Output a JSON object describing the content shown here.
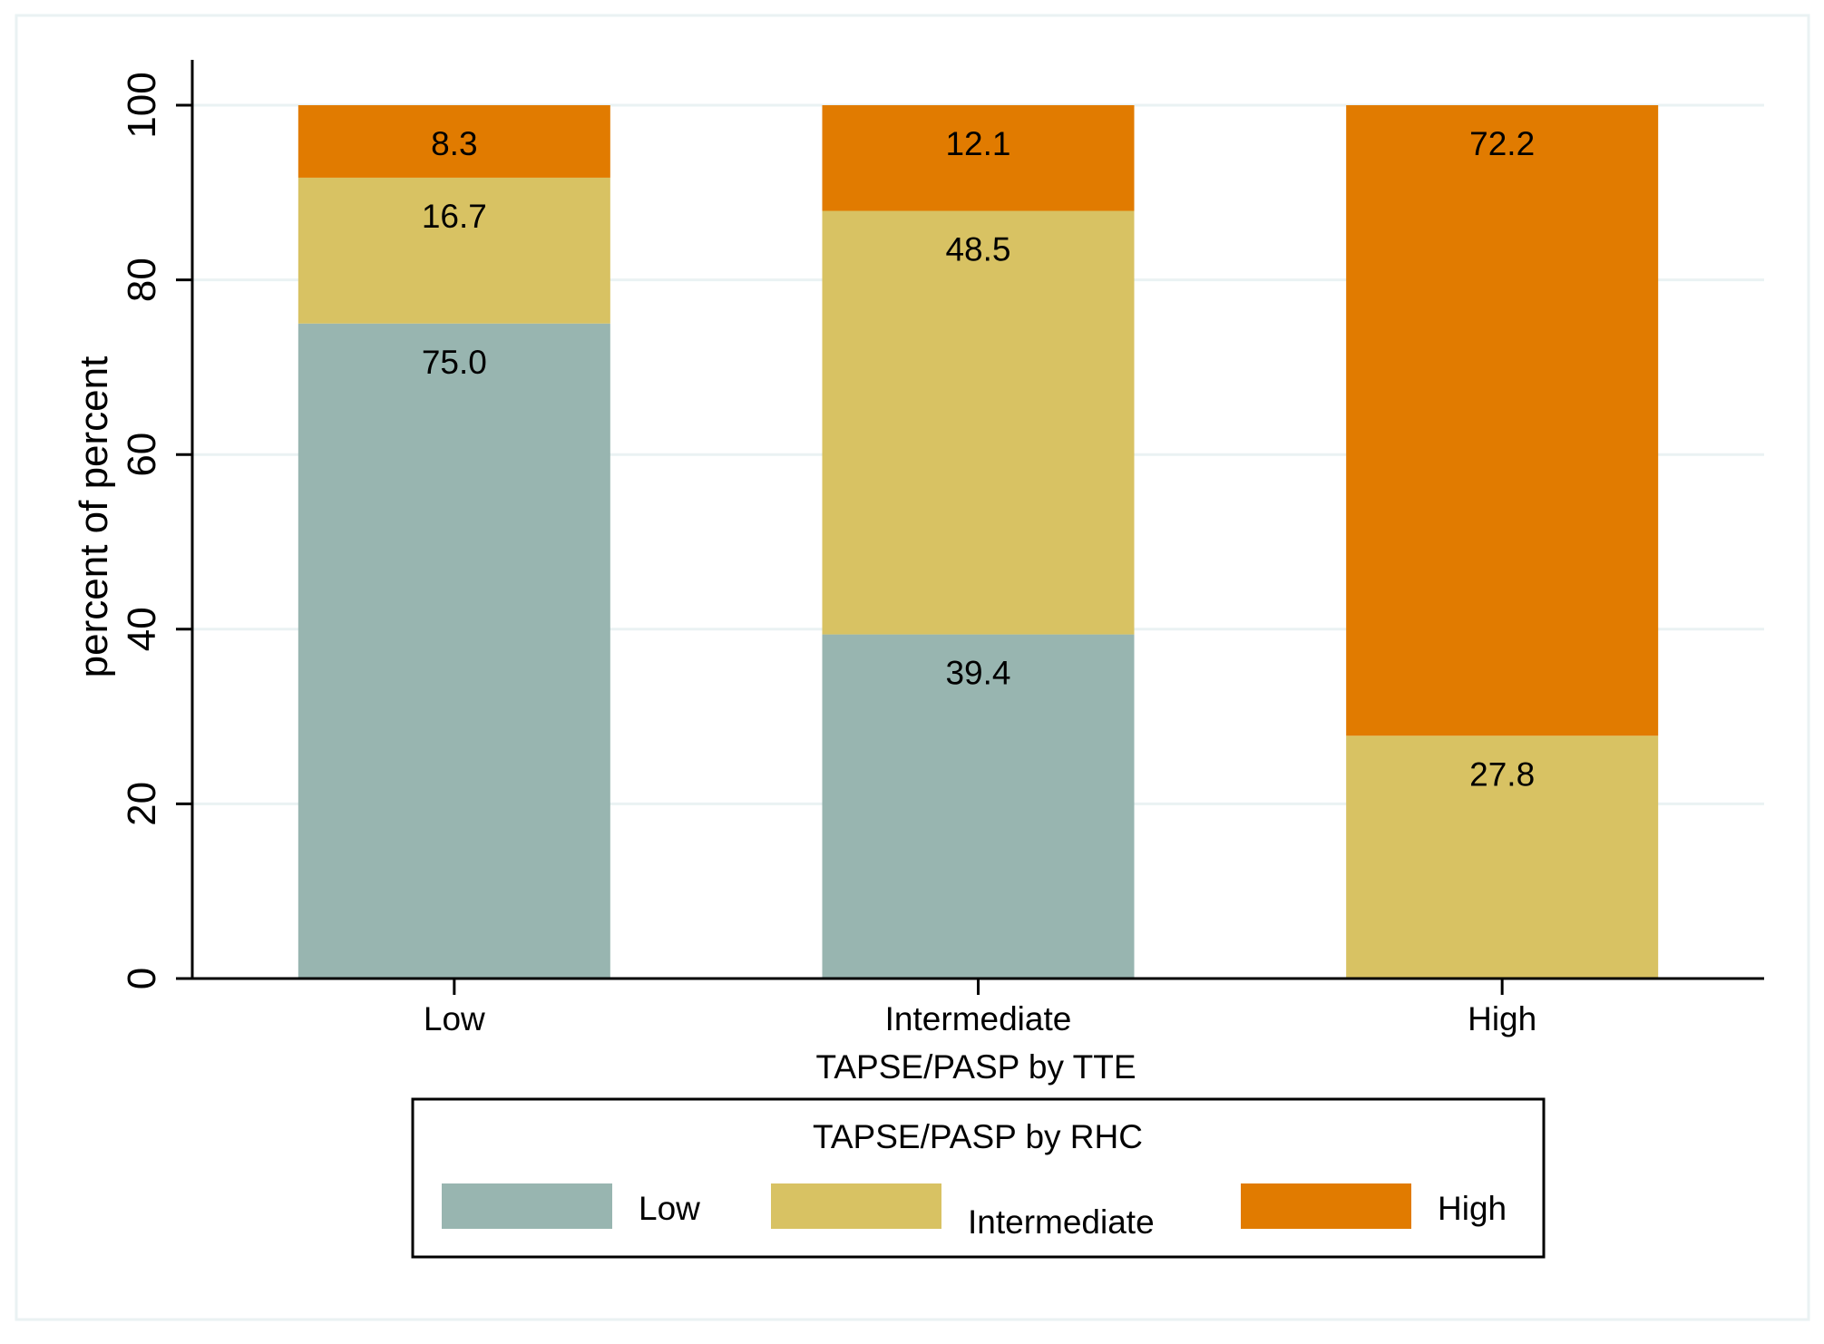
{
  "chart_data": {
    "type": "bar",
    "stacked": true,
    "categories": [
      "Low",
      "Intermediate",
      "High"
    ],
    "series": [
      {
        "name": "Low",
        "color": "#98b5b0",
        "values": [
          75.0,
          39.4,
          0
        ]
      },
      {
        "name": "Intermediate",
        "color": "#d8c263",
        "values": [
          16.7,
          48.5,
          27.8
        ]
      },
      {
        "name": "High",
        "color": "#e17b00",
        "values": [
          8.3,
          12.1,
          72.2
        ]
      }
    ],
    "data_labels": [
      [
        "75.0",
        "39.4",
        ""
      ],
      [
        "16.7",
        "48.5",
        "27.8"
      ],
      [
        "8.3",
        "12.1",
        "72.2"
      ]
    ],
    "xlabel": "TAPSE/PASP by TTE",
    "ylabel": "percent of percent",
    "ylim": [
      0,
      100
    ],
    "yticks": [
      0,
      20,
      40,
      60,
      80,
      100
    ],
    "ytick_labels": [
      "0",
      "20",
      "40",
      "60",
      "80",
      "100"
    ],
    "grid": true,
    "legend": {
      "title": "TAPSE/PASP by RHC",
      "position": "bottom",
      "entries": [
        "Low",
        "Intermediate",
        "High"
      ]
    },
    "colors": {
      "background": "#ffffff",
      "gridline": "#eaf2f3",
      "frame": "#eaf2f3",
      "axis": "#000000"
    }
  }
}
